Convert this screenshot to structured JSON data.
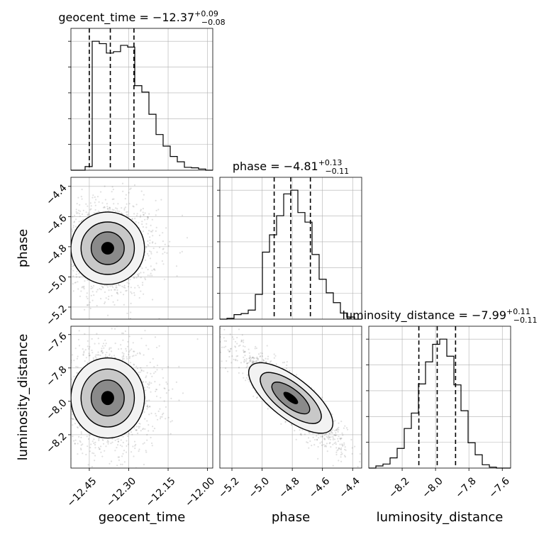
{
  "chart_data": {
    "type": "corner",
    "parameters": [
      "geocent_time",
      "phase",
      "luminosity_distance"
    ],
    "titles": [
      {
        "param": "geocent_time",
        "prefix": "geocent_time = ",
        "median": "−12.37",
        "upper": "+0.09",
        "lower": "−0.08"
      },
      {
        "param": "phase",
        "prefix": "phase = ",
        "median": "−4.81",
        "upper": "+0.13",
        "lower": "−0.11"
      },
      {
        "param": "luminosity_distance",
        "prefix": "luminosity_distance = ",
        "median": "−7.99",
        "upper": "+0.11",
        "lower": "−0.11"
      }
    ],
    "ranges": [
      [
        -12.52,
        -11.98
      ],
      [
        -5.28,
        -4.34
      ],
      [
        -8.4,
        -7.55
      ]
    ],
    "ticks": [
      {
        "values": [
          -12.45,
          -12.3,
          -12.15,
          -12.0
        ],
        "labels": [
          "−12.45",
          "−12.30",
          "−12.15",
          "−12.00"
        ]
      },
      {
        "values": [
          -5.2,
          -5.0,
          -4.8,
          -4.6,
          -4.4
        ],
        "labels": [
          "−5.2",
          "−5.0",
          "−4.8",
          "−4.6",
          "−4.4"
        ]
      },
      {
        "values": [
          -8.2,
          -8.0,
          -7.8,
          -7.6
        ],
        "labels": [
          "−8.2",
          "−8.0",
          "−7.8",
          "−7.6"
        ]
      }
    ],
    "quantiles": [
      [
        -12.45,
        -12.37,
        -12.28
      ],
      [
        -4.92,
        -4.81,
        -4.68
      ],
      [
        -8.1,
        -7.99,
        -7.88
      ]
    ],
    "histograms": [
      {
        "edges": [
          -12.52,
          -12.493,
          -12.466,
          -12.439,
          -12.412,
          -12.385,
          -12.358,
          -12.331,
          -12.304,
          -12.277,
          -12.25,
          -12.223,
          -12.196,
          -12.169,
          -12.142,
          -12.115,
          -12.088,
          -12.061,
          -12.034,
          -12.007,
          -11.98
        ],
        "counts": [
          0,
          0,
          1.5,
          53.5,
          52.5,
          48.6,
          49.2,
          51.8,
          51.1,
          35.1,
          32.4,
          23.2,
          14.8,
          10,
          5.7,
          3.5,
          1.2,
          1,
          0.5,
          0
        ]
      },
      {
        "edges": [
          -5.28,
          -5.233,
          -5.186,
          -5.139,
          -5.092,
          -5.045,
          -4.998,
          -4.951,
          -4.904,
          -4.857,
          -4.81,
          -4.763,
          -4.716,
          -4.669,
          -4.622,
          -4.575,
          -4.528,
          -4.481,
          -4.434,
          -4.387,
          -4.34
        ],
        "counts": [
          0,
          0.3,
          1.7,
          2.1,
          3.4,
          9.3,
          25.2,
          31.7,
          38.9,
          47.1,
          48.5,
          40.1,
          36.5,
          24.3,
          15,
          9.9,
          6.2,
          2.3,
          0.8,
          0
        ]
      },
      {
        "edges": [
          -8.4,
          -8.3575,
          -8.315,
          -8.2725,
          -8.23,
          -8.1875,
          -8.145,
          -8.1025,
          -8.06,
          -8.0175,
          -7.975,
          -7.9325,
          -7.89,
          -7.8475,
          -7.805,
          -7.7625,
          -7.72,
          -7.6775,
          -7.635,
          -7.5925,
          -7.55
        ],
        "counts": [
          0,
          0.9,
          1.7,
          4.3,
          8.3,
          16.7,
          23.2,
          35.5,
          44.8,
          52.2,
          54.4,
          47.2,
          35.1,
          24.2,
          10.7,
          5.6,
          1.4,
          0.4,
          0,
          0
        ]
      }
    ],
    "samples_2d": [
      {
        "x": "geocent_time",
        "y": "phase",
        "center": [
          -12.38,
          -4.81
        ],
        "spread": [
          0.07,
          0.12
        ],
        "correlation": 0
      },
      {
        "x": "geocent_time",
        "y": "luminosity_distance",
        "center": [
          -12.38,
          -7.98
        ],
        "spread": [
          0.07,
          0.12
        ],
        "correlation": 0
      },
      {
        "x": "phase",
        "y": "luminosity_distance",
        "center": [
          -4.81,
          -7.98
        ],
        "spread": [
          0.13,
          0.11
        ],
        "correlation": -0.9
      }
    ],
    "grid": true
  }
}
